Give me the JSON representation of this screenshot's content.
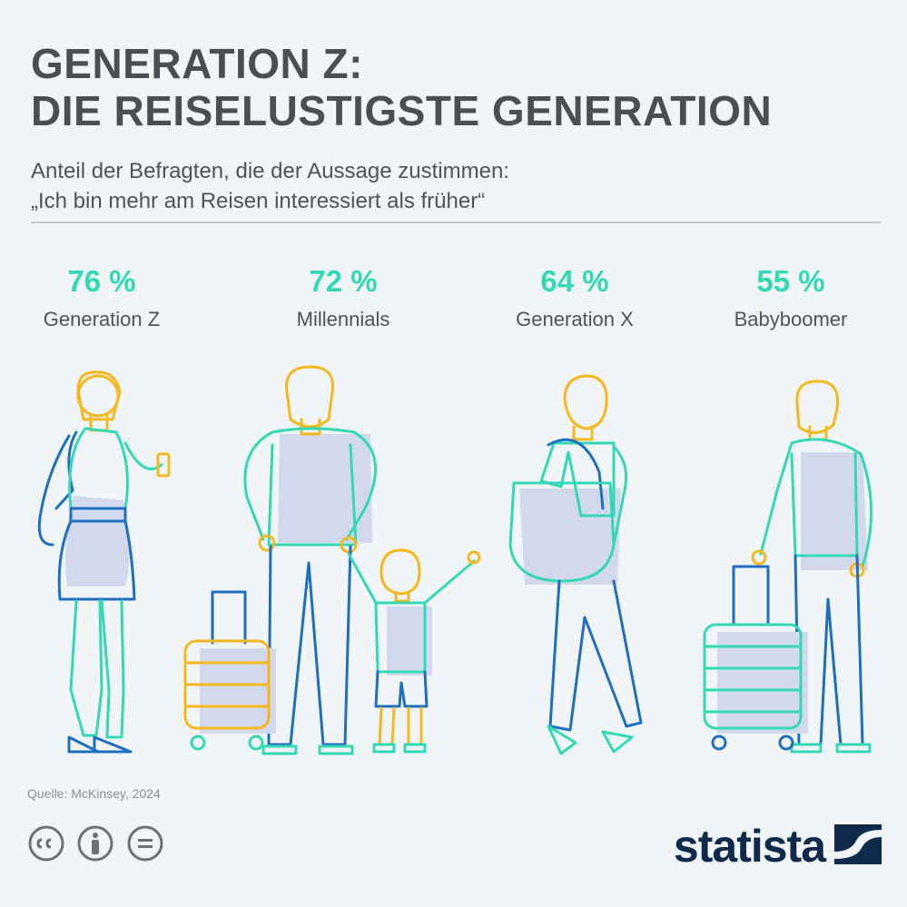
{
  "title": {
    "line1": "GENERATION Z:",
    "line2": "DIE REISELUSTIGSTE GENERATION"
  },
  "subtitle": {
    "line1": "Anteil der Befragten, die der Aussage zustimmen:",
    "line2": "„Ich bin mehr am Reisen interessiert als früher“"
  },
  "chart_data": {
    "type": "bar",
    "categories": [
      "Generation Z",
      "Millennials",
      "Generation X",
      "Babyboomer"
    ],
    "values": [
      76,
      72,
      64,
      55
    ],
    "value_labels": [
      "76 %",
      "72 %",
      "64 %",
      "55 %"
    ],
    "unit": "%",
    "title": "GENERATION Z: DIE REISELUSTIGSTE GENERATION",
    "subtitle": "Anteil der Befragten, die der Aussage zustimmen: „Ich bin mehr am Reisen interessiert als früher“"
  },
  "source": "Quelle: McKinsey, 2024",
  "brand": "statista",
  "icons": [
    "cc-icon",
    "attribution-icon",
    "no-derivatives-icon",
    "statista-logo-icon"
  ],
  "colors": {
    "accent": "#33d9b4",
    "yellow": "#f5b820",
    "blue": "#1f6fc1",
    "shadow": "#d3d9ec",
    "text": "#4b4f54",
    "brand": "#0f2a4a"
  }
}
